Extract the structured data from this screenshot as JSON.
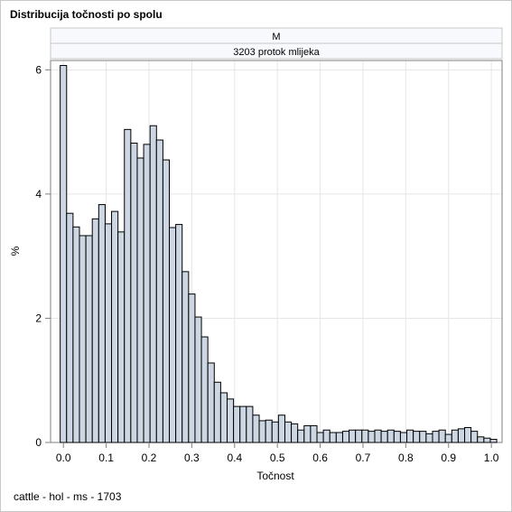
{
  "chart_data": {
    "type": "bar",
    "title": "Distribucija točnosti po spolu",
    "panel_labels": [
      "M",
      "3203 protok mlijeka"
    ],
    "xlabel": "Točnost",
    "ylabel": "%",
    "xlim": [
      -0.03,
      1.025
    ],
    "ylim": [
      0,
      6.15
    ],
    "xticks": [
      "0.0",
      "0.1",
      "0.2",
      "0.3",
      "0.4",
      "0.5",
      "0.6",
      "0.7",
      "0.8",
      "0.9",
      "1.0"
    ],
    "yticks": [
      "0",
      "2",
      "4",
      "6"
    ],
    "bin_width": 0.015,
    "bin_start": -0.0075,
    "values": [
      6.07,
      3.69,
      3.47,
      3.33,
      3.33,
      3.6,
      3.83,
      3.52,
      3.72,
      3.39,
      5.04,
      4.82,
      4.58,
      4.8,
      5.1,
      4.87,
      4.55,
      3.46,
      3.51,
      2.75,
      2.39,
      2.02,
      1.7,
      1.28,
      0.97,
      0.8,
      0.7,
      0.58,
      0.58,
      0.58,
      0.44,
      0.35,
      0.36,
      0.33,
      0.44,
      0.33,
      0.3,
      0.2,
      0.27,
      0.27,
      0.16,
      0.2,
      0.16,
      0.16,
      0.18,
      0.2,
      0.2,
      0.2,
      0.18,
      0.2,
      0.18,
      0.2,
      0.18,
      0.16,
      0.2,
      0.18,
      0.18,
      0.14,
      0.18,
      0.2,
      0.13,
      0.2,
      0.22,
      0.24,
      0.18,
      0.09,
      0.07,
      0.05
    ],
    "grid": true,
    "legend": "none"
  },
  "footnote": "cattle - hol - ms - 1703",
  "colors": {
    "bar_fill": "#cdd6e3",
    "bar_stroke": "#000000",
    "grid": "#e6e6e6",
    "panel_header_fill": "#f8f9fc",
    "axis": "#7f7f7f"
  }
}
